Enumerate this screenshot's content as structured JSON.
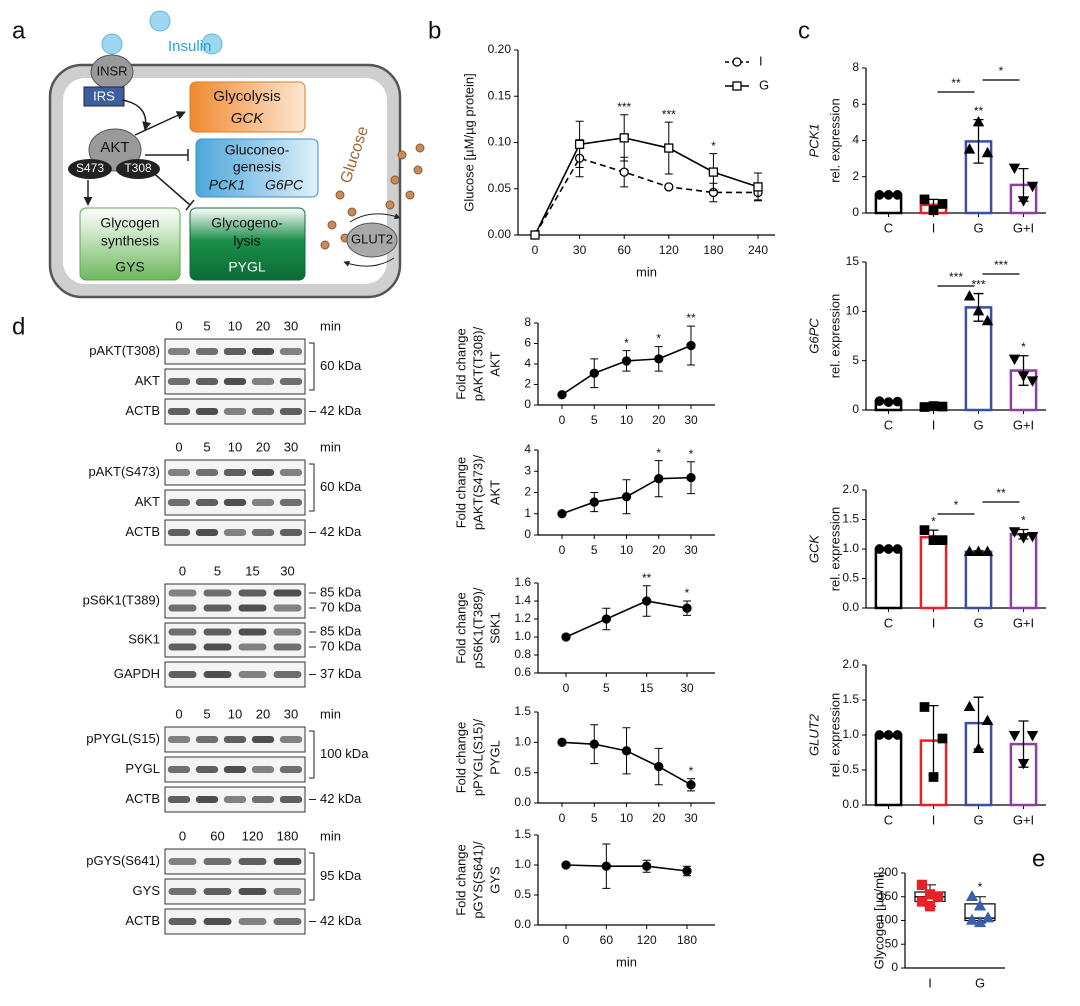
{
  "panels": [
    "a",
    "b",
    "c",
    "d",
    "e"
  ],
  "diagram": {
    "insulin": "Insulin",
    "insr": "INSR",
    "irs": "IRS",
    "akt": "AKT",
    "s473": "S473",
    "t308": "T308",
    "glycolysis": [
      "Glycolysis",
      "GCK"
    ],
    "gluconeogenesis": [
      "Gluconeo-",
      "genesis",
      "PCK1",
      "G6PC"
    ],
    "glycogen_synthesis": [
      "Glycogen",
      "synthesis",
      "GYS"
    ],
    "glycogenolysis": [
      "Glycogeno-",
      "lysis",
      "PYGL"
    ],
    "glucose": "Glucose",
    "glut2": "GLUT2"
  },
  "blots": [
    {
      "times": [
        "0",
        "5",
        "10",
        "20",
        "30"
      ],
      "unit": "min",
      "bracket": "60 kDa",
      "rows": [
        {
          "label": "pAKT(T308)"
        },
        {
          "label": "AKT"
        },
        {
          "label": "ACTB",
          "sizes": [
            "42 kDa"
          ]
        }
      ]
    },
    {
      "times": [
        "0",
        "5",
        "10",
        "20",
        "30"
      ],
      "unit": "min",
      "bracket": "60 kDa",
      "rows": [
        {
          "label": "pAKT(S473)"
        },
        {
          "label": "AKT"
        },
        {
          "label": "ACTB",
          "sizes": [
            "42 kDa"
          ]
        }
      ]
    },
    {
      "times": [
        "0",
        "5",
        "15",
        "30"
      ],
      "rows": [
        {
          "label": "pS6K1(T389)",
          "sizes": [
            "85 kDa",
            "70 kDa"
          ]
        },
        {
          "label": "S6K1",
          "sizes": [
            "85 kDa",
            "70 kDa"
          ]
        },
        {
          "label": "GAPDH",
          "sizes": [
            "37 kDa"
          ]
        }
      ]
    },
    {
      "times": [
        "0",
        "5",
        "10",
        "20",
        "30"
      ],
      "unit": "min",
      "bracket": "100 kDa",
      "rows": [
        {
          "label": "pPYGL(S15)"
        },
        {
          "label": "PYGL"
        },
        {
          "label": "ACTB",
          "sizes": [
            "42 kDa"
          ]
        }
      ]
    },
    {
      "times": [
        "0",
        "60",
        "120",
        "180"
      ],
      "unit": "min",
      "bracket": "95 kDa",
      "rows": [
        {
          "label": "pGYS(S641)"
        },
        {
          "label": "GYS"
        },
        {
          "label": "ACTB",
          "sizes": [
            "42 kDa"
          ]
        }
      ]
    }
  ],
  "chart_data": [
    {
      "type": "line",
      "ylabel": "Glucose [µM/µg protein]",
      "xlabel": "min",
      "categories": [
        "0",
        "30",
        "60",
        "120",
        "180",
        "240"
      ],
      "ylim": [
        0,
        0.2
      ],
      "yticks": [
        {
          "value": 0,
          "label": "0.00"
        },
        0.05,
        {
          "value": 0.1,
          "label": "0.10"
        },
        0.15,
        {
          "value": 0.2,
          "label": "0.20"
        }
      ],
      "series": [
        {
          "name": "I",
          "color": "#000000",
          "marker": "circle-open",
          "dash": true,
          "values": [
            0,
            0.083,
            0.068,
            0.052,
            0.046,
            0.046
          ],
          "errors": [
            0,
            0.02,
            0.016,
            0.002,
            0.01,
            0.008
          ]
        },
        {
          "name": "G",
          "color": "#000000",
          "marker": "square-open",
          "values": [
            0,
            0.098,
            0.105,
            0.094,
            0.068,
            0.052
          ],
          "errors": [
            0,
            0.025,
            0.025,
            0.028,
            0.02,
            0.015
          ]
        }
      ],
      "significance": [
        null,
        null,
        "***",
        "***",
        "*",
        null
      ],
      "legend": "upper right"
    },
    {
      "type": "line",
      "ylabel": [
        "Fold change",
        "pAKT(T308)/",
        "AKT"
      ],
      "categories": [
        "0",
        "5",
        "10",
        "20",
        "30"
      ],
      "ylim": [
        0,
        8
      ],
      "yticks": [
        0,
        2,
        4,
        6,
        8
      ],
      "series": [
        {
          "color": "#000000",
          "marker": "circle",
          "values": [
            1,
            3.1,
            4.3,
            4.5,
            5.8
          ],
          "errors": [
            0,
            1.4,
            1.0,
            1.2,
            1.9
          ]
        }
      ],
      "significance": [
        null,
        null,
        "*",
        "*",
        "**"
      ]
    },
    {
      "type": "line",
      "ylabel": [
        "Fold change",
        "pAKT(S473)/",
        "AKT"
      ],
      "categories": [
        "0",
        "5",
        "10",
        "20",
        "30"
      ],
      "ylim": [
        0,
        4
      ],
      "yticks": [
        0,
        1,
        2,
        3,
        4
      ],
      "series": [
        {
          "color": "#000000",
          "marker": "circle",
          "values": [
            1,
            1.55,
            1.8,
            2.65,
            2.7
          ],
          "errors": [
            0,
            0.45,
            0.8,
            0.85,
            0.75
          ]
        }
      ],
      "significance": [
        null,
        null,
        null,
        "*",
        "*"
      ]
    },
    {
      "type": "line",
      "ylabel": [
        "Fold change",
        "pS6K1(T389)/",
        "S6K1"
      ],
      "categories": [
        "0",
        "5",
        "15",
        "30"
      ],
      "ylim": [
        0.6,
        1.6
      ],
      "yticks": [
        0.6,
        0.8,
        {
          "value": 1,
          "label": "1.0"
        },
        1.2,
        1.4,
        1.6
      ],
      "series": [
        {
          "color": "#000000",
          "marker": "circle",
          "values": [
            1,
            1.2,
            1.4,
            1.32
          ],
          "errors": [
            0,
            0.12,
            0.17,
            0.08
          ]
        }
      ],
      "significance": [
        null,
        null,
        "**",
        "*"
      ]
    },
    {
      "type": "line",
      "ylabel": [
        "Fold change",
        "pPYGL(S15)/",
        "PYGL"
      ],
      "categories": [
        "0",
        "5",
        "10",
        "20",
        "30"
      ],
      "ylim": [
        0,
        1.5
      ],
      "yticks": [
        {
          "value": 0,
          "label": "0.0"
        },
        0.5,
        {
          "value": 1,
          "label": "1.0"
        },
        1.5
      ],
      "series": [
        {
          "color": "#000000",
          "marker": "circle",
          "values": [
            1,
            0.97,
            0.86,
            0.6,
            0.3
          ],
          "errors": [
            0,
            0.32,
            0.38,
            0.3,
            0.1
          ]
        }
      ],
      "significance": [
        null,
        null,
        null,
        null,
        "*"
      ]
    },
    {
      "type": "line",
      "ylabel": [
        "Fold change",
        "pGYS(S641)/",
        "GYS"
      ],
      "xlabel": "min",
      "categories": [
        "0",
        "60",
        "120",
        "180"
      ],
      "ylim": [
        0,
        1.5
      ],
      "yticks": [
        {
          "value": 0,
          "label": "0.0"
        },
        0.5,
        {
          "value": 1,
          "label": "1.0"
        },
        1.5
      ],
      "series": [
        {
          "color": "#000000",
          "marker": "circle",
          "values": [
            1,
            0.98,
            0.98,
            0.9
          ],
          "errors": [
            0,
            0.37,
            0.1,
            0.08
          ]
        }
      ]
    },
    {
      "type": "bar",
      "ylabel": [
        "PCK1",
        "rel. expression"
      ],
      "categories": [
        "C",
        "I",
        "G",
        "G+I"
      ],
      "colors": [
        "#000000",
        "#e8202a",
        "#3a4fa0",
        "#8b3fa0"
      ],
      "markers": [
        "circle",
        "square",
        "triangle",
        "triangle-down"
      ],
      "ylim": [
        0,
        8
      ],
      "yticks": [
        0,
        2,
        4,
        6,
        8
      ],
      "values": [
        1,
        0.45,
        3.95,
        1.55
      ],
      "errors": [
        0.05,
        0.3,
        1.2,
        0.9
      ],
      "points": [
        [
          1,
          1,
          1
        ],
        [
          0.75,
          0.15,
          0.5
        ],
        [
          3.5,
          5,
          3.3
        ],
        [
          2.5,
          0.7,
          1.5
        ]
      ],
      "significance": [
        null,
        null,
        "**",
        null
      ],
      "comparisons": [
        {
          "pair": [
            "I",
            "G"
          ],
          "label": "**"
        },
        {
          "pair": [
            "G",
            "G+I"
          ],
          "label": "*"
        }
      ]
    },
    {
      "type": "bar",
      "ylabel": [
        "G6PC",
        "rel. expression"
      ],
      "categories": [
        "C",
        "I",
        "G",
        "G+I"
      ],
      "colors": [
        "#000000",
        "#e8202a",
        "#3a4fa0",
        "#8b3fa0"
      ],
      "markers": [
        "circle",
        "square",
        "triangle",
        "triangle-down"
      ],
      "ylim": [
        0,
        15
      ],
      "yticks": [
        0,
        5,
        10,
        15
      ],
      "values": [
        0.85,
        0.35,
        10.4,
        4
      ],
      "errors": [
        0.1,
        0.1,
        1.4,
        1.5
      ],
      "points": [
        [
          0.9,
          0.8,
          0.85
        ],
        [
          0.3,
          0.4,
          0.35
        ],
        [
          11.5,
          10,
          9
        ],
        [
          5.2,
          3.5,
          3
        ]
      ],
      "significance": [
        null,
        null,
        "***",
        "*"
      ],
      "comparisons": [
        {
          "pair": [
            "I",
            "G"
          ],
          "label": "***"
        },
        {
          "pair": [
            "G",
            "G+I"
          ],
          "label": "***"
        }
      ]
    },
    {
      "type": "bar",
      "ylabel": [
        "GCK",
        "rel. expression"
      ],
      "categories": [
        "C",
        "I",
        "G",
        "G+I"
      ],
      "colors": [
        "#000000",
        "#e8202a",
        "#3a4fa0",
        "#8b3fa0"
      ],
      "markers": [
        "circle",
        "square",
        "triangle",
        "triangle-down"
      ],
      "ylim": [
        0,
        2
      ],
      "yticks": [
        {
          "value": 0,
          "label": "0.0"
        },
        0.5,
        {
          "value": 1,
          "label": "1.0"
        },
        1.5,
        {
          "value": 2,
          "label": "2.0"
        }
      ],
      "values": [
        1,
        1.2,
        0.95,
        1.25
      ],
      "errors": [
        0.01,
        0.12,
        0.02,
        0.08
      ],
      "points": [
        [
          1,
          1,
          1
        ],
        [
          1.32,
          1.15,
          1.15
        ],
        [
          0.95,
          0.95,
          0.95
        ],
        [
          1.3,
          1.2,
          1.22
        ]
      ],
      "significance": [
        null,
        "*",
        null,
        "*"
      ],
      "comparisons": [
        {
          "pair": [
            "I",
            "G"
          ],
          "label": "*"
        },
        {
          "pair": [
            "G",
            "G+I"
          ],
          "label": "**"
        }
      ]
    },
    {
      "type": "bar",
      "ylabel": [
        "GLUT2",
        "rel. expression"
      ],
      "categories": [
        "C",
        "I",
        "G",
        "G+I"
      ],
      "colors": [
        "#000000",
        "#e8202a",
        "#3a4fa0",
        "#8b3fa0"
      ],
      "markers": [
        "circle",
        "square",
        "triangle",
        "triangle-down"
      ],
      "ylim": [
        0,
        2
      ],
      "yticks": [
        {
          "value": 0,
          "label": "0.0"
        },
        0.5,
        {
          "value": 1,
          "label": "1.0"
        },
        1.5,
        {
          "value": 2,
          "label": "2.0"
        }
      ],
      "values": [
        1,
        0.92,
        1.17,
        0.87
      ],
      "errors": [
        0.01,
        0.5,
        0.37,
        0.33
      ],
      "points": [
        [
          1,
          1,
          1
        ],
        [
          1.4,
          0.4,
          0.95
        ],
        [
          1.4,
          0.8,
          1.2
        ],
        [
          1,
          0.6,
          1
        ]
      ]
    },
    {
      "type": "box",
      "ylabel": "Glycogen [µg/ml]",
      "categories": [
        "I",
        "G"
      ],
      "colors": [
        "#e8202a",
        "#3a5fb0"
      ],
      "markers": [
        "square",
        "triangle"
      ],
      "ylim": [
        0,
        200
      ],
      "yticks": [
        0,
        50,
        100,
        150,
        200
      ],
      "min": [
        130,
        95
      ],
      "q1": [
        140,
        100
      ],
      "median": [
        150,
        105
      ],
      "q3": [
        160,
        135
      ],
      "max": [
        175,
        150
      ],
      "points": [
        [
          175,
          155,
          150,
          140,
          130
        ],
        [
          150,
          130,
          105,
          100,
          95
        ]
      ],
      "significance": [
        null,
        "*"
      ]
    }
  ]
}
